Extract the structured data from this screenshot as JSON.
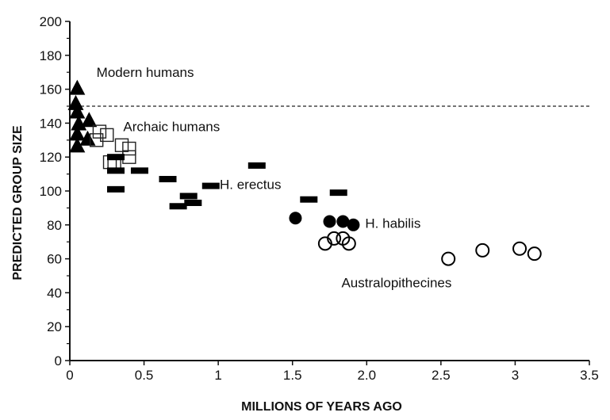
{
  "chart_data": {
    "type": "scatter",
    "title": "",
    "xlabel": "MILLIONS OF YEARS AGO",
    "ylabel": "PREDICTED GROUP SIZE",
    "xlim": [
      0,
      3.5
    ],
    "ylim": [
      0,
      200
    ],
    "x_ticks": [
      "0",
      "0.5",
      "1",
      "1.5",
      "2.0",
      "2.5",
      "3",
      "3.5"
    ],
    "x_tick_values": [
      0,
      0.5,
      1,
      1.5,
      2,
      2.5,
      3,
      3.5
    ],
    "y_ticks": [
      0,
      20,
      40,
      60,
      80,
      100,
      120,
      140,
      160,
      180,
      200
    ],
    "grid": false,
    "reference_line": {
      "y": 150,
      "style": "dashed"
    },
    "series": [
      {
        "name": "Modern humans",
        "marker": "filled-triangle",
        "points": [
          [
            0.05,
            160
          ],
          [
            0.04,
            151
          ],
          [
            0.05,
            146
          ],
          [
            0.06,
            139
          ],
          [
            0.05,
            133
          ],
          [
            0.05,
            126
          ],
          [
            0.13,
            141
          ],
          [
            0.12,
            130
          ]
        ]
      },
      {
        "name": "Archaic humans",
        "marker": "open-square",
        "points": [
          [
            0.2,
            135
          ],
          [
            0.25,
            133
          ],
          [
            0.18,
            130
          ],
          [
            0.35,
            127
          ],
          [
            0.4,
            125
          ],
          [
            0.4,
            120
          ],
          [
            0.27,
            117
          ],
          [
            0.3,
            116
          ]
        ]
      },
      {
        "name": "H. erectus",
        "marker": "filled-bar",
        "points": [
          [
            0.31,
            120
          ],
          [
            0.31,
            112
          ],
          [
            0.31,
            101
          ],
          [
            0.47,
            112
          ],
          [
            0.66,
            107
          ],
          [
            0.8,
            97
          ],
          [
            0.83,
            93
          ],
          [
            0.73,
            91
          ],
          [
            0.95,
            103
          ],
          [
            1.26,
            115
          ],
          [
            1.61,
            95
          ],
          [
            1.81,
            99
          ]
        ]
      },
      {
        "name": "H. habilis",
        "marker": "filled-circle",
        "points": [
          [
            1.52,
            84
          ],
          [
            1.75,
            82
          ],
          [
            1.84,
            82
          ],
          [
            1.91,
            80
          ]
        ]
      },
      {
        "name": "Australopithecines",
        "marker": "open-circle",
        "points": [
          [
            1.72,
            69
          ],
          [
            1.78,
            72
          ],
          [
            1.84,
            72
          ],
          [
            1.88,
            69
          ],
          [
            2.55,
            60
          ],
          [
            2.78,
            65
          ],
          [
            3.03,
            66
          ],
          [
            3.13,
            63
          ]
        ]
      }
    ],
    "annotations": [
      {
        "text": "Modern humans",
        "x": 0.18,
        "y": 170
      },
      {
        "text": "Archaic humans",
        "x": 0.36,
        "y": 138
      },
      {
        "text": "H. erectus",
        "x": 1.01,
        "y": 104
      },
      {
        "text": "H. habilis",
        "x": 1.99,
        "y": 81
      },
      {
        "text": "Australopithecines",
        "x": 1.83,
        "y": 46
      }
    ]
  }
}
